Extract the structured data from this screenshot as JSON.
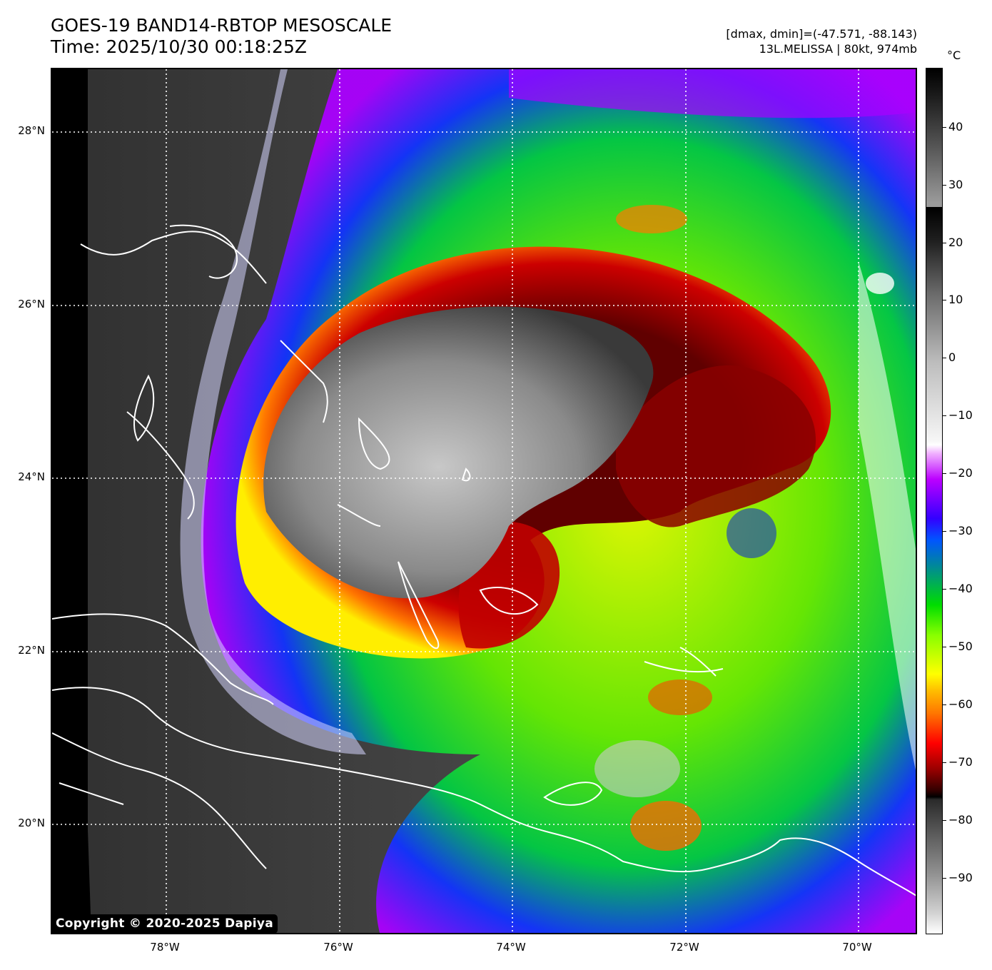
{
  "header": {
    "title_line1": "GOES-19 BAND14-RBTOP MESOSCALE",
    "title_line2": "Time: 2025/10/30 00:18:25Z",
    "stats_line1": "[dmax, dmin]=(-47.571, -88.143)",
    "stats_line2": "13L.MELISSA | 80kt, 974mb"
  },
  "map": {
    "lat_labels": [
      "28°N",
      "26°N",
      "24°N",
      "22°N",
      "20°N"
    ],
    "lon_labels": [
      "78°W",
      "76°W",
      "74°W",
      "72°W",
      "70°W"
    ],
    "copyright": "Copyright © 2020-2025 Dapiya",
    "gridlines": true,
    "gridline_style": "dotted white"
  },
  "colorbar": {
    "unit": "°C",
    "tick_labels": [
      "40",
      "30",
      "20",
      "10",
      "0",
      "−10",
      "−20",
      "−30",
      "−40",
      "−50",
      "−60",
      "−70",
      "−80",
      "−90"
    ],
    "range": [
      -100,
      50
    ],
    "orientation": "vertical"
  }
}
